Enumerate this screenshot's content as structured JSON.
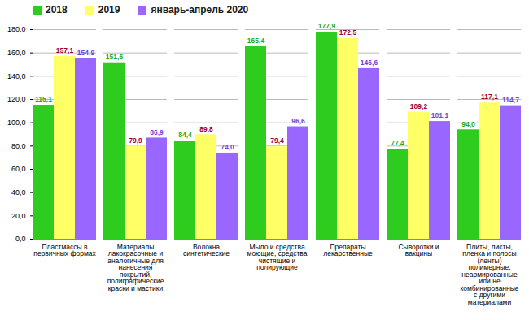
{
  "chart_data": {
    "type": "bar",
    "categories": [
      "Пластмассы в первичных формах",
      "Материалы лакокрасочные и аналогичные для нанесения покрытий, полиграфические краски и мастики",
      "Волокна синтетические",
      "Мыло и средства моющие, средства чистящие и полирующие",
      "Препараты лекарственные",
      "Сыворотки и вакцины",
      "Плиты, листы, пленка и полосы (ленты) полимерные, неармированные или не комбинированные с другими материалами"
    ],
    "series": [
      {
        "name": "2018",
        "color": "#2ecc1f",
        "values": [
          115.1,
          151.6,
          84.4,
          165.4,
          177.9,
          77.4,
          94.0
        ],
        "value_labels": [
          "115,1",
          "151,6",
          "84,4",
          "165,4",
          "177,9",
          "77,4",
          "94,0"
        ]
      },
      {
        "name": "2019",
        "color": "#ffff66",
        "values": [
          157.1,
          79.9,
          89.8,
          79.4,
          172.5,
          109.2,
          117.1
        ],
        "value_labels": [
          "157,1",
          "79,9",
          "89,8",
          "79,4",
          "172,5",
          "109,2",
          "117,1"
        ]
      },
      {
        "name": "январь-апрель 2020",
        "color": "#9966ff",
        "values": [
          154.9,
          86.9,
          74.0,
          96.6,
          146.6,
          101.1,
          114.7
        ],
        "value_labels": [
          "154,9",
          "86,9",
          "74,0",
          "96,6",
          "146,6",
          "101,1",
          "114,7"
        ]
      }
    ],
    "ylim": [
      0,
      180
    ],
    "yticks": [
      {
        "value": 0,
        "label": "0,0"
      },
      {
        "value": 20,
        "label": "20,0"
      },
      {
        "value": 40,
        "label": "40,0"
      },
      {
        "value": 60,
        "label": "60,0"
      },
      {
        "value": 80,
        "label": "80,0"
      },
      {
        "value": 100,
        "label": "100,0"
      },
      {
        "value": 120,
        "label": "120,0"
      },
      {
        "value": 140,
        "label": "140,0"
      },
      {
        "value": 160,
        "label": "160,0"
      },
      {
        "value": 180,
        "label": "180,0"
      }
    ],
    "grid": true,
    "legend": "top",
    "data_labels": true
  }
}
